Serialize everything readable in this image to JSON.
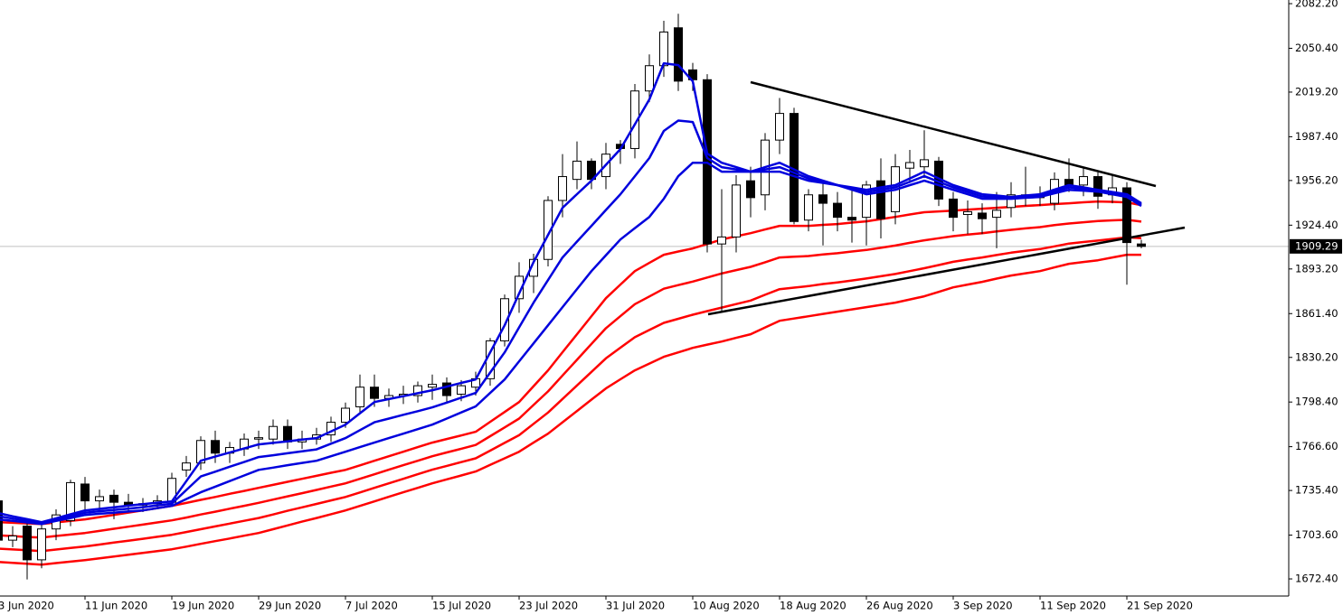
{
  "chart_data": {
    "type": "candlestick",
    "categories": [
      "3 Jun 2020",
      null,
      null,
      null,
      null,
      null,
      "11 Jun 2020",
      null,
      null,
      null,
      null,
      null,
      "19 Jun 2020",
      null,
      null,
      null,
      null,
      null,
      "29 Jun 2020",
      null,
      null,
      null,
      null,
      null,
      "7 Jul 2020",
      null,
      null,
      null,
      null,
      null,
      "15 Jul 2020",
      null,
      null,
      null,
      null,
      null,
      "23 Jul 2020",
      null,
      null,
      null,
      null,
      null,
      "31 Jul 2020",
      null,
      null,
      null,
      null,
      null,
      "10 Aug 2020",
      null,
      null,
      null,
      null,
      null,
      "18 Aug 2020",
      null,
      null,
      null,
      null,
      null,
      "26 Aug 2020",
      null,
      null,
      null,
      null,
      null,
      "3 Sep 2020",
      null,
      null,
      null,
      null,
      null,
      "11 Sep 2020",
      null,
      null,
      null,
      null,
      null,
      "21 Sep 2020",
      null
    ],
    "open": [
      1728,
      1700,
      1710,
      1686,
      1708,
      1714,
      1740,
      1728,
      1732,
      1727,
      1725,
      1726,
      1727,
      1750,
      1755,
      1771,
      1762,
      1765,
      1772,
      1772,
      1781,
      1770,
      1772,
      1775,
      1784,
      1795,
      1809,
      1801,
      1803,
      1803,
      1809,
      1812,
      1804,
      1809,
      1815,
      1842,
      1872,
      1888,
      1900,
      1942,
      1957,
      1970,
      1959,
      1982,
      1979,
      2020,
      2038,
      2065,
      2035,
      2028,
      1911,
      1916,
      1956,
      1946,
      1985,
      2004,
      1928,
      1946,
      1940,
      1930,
      1930,
      1956,
      1934,
      1965,
      1966,
      1970,
      1943,
      1932,
      1933,
      1930,
      1937,
      1945,
      1944,
      1940,
      1957,
      1953,
      1959,
      1946,
      1951,
      1911
    ],
    "high": [
      1731,
      1710,
      1712,
      1712,
      1722,
      1743,
      1745,
      1736,
      1736,
      1733,
      1730,
      1732,
      1748,
      1760,
      1774,
      1778,
      1770,
      1776,
      1778,
      1786,
      1786,
      1778,
      1780,
      1788,
      1798,
      1818,
      1818,
      1808,
      1810,
      1813,
      1818,
      1816,
      1814,
      1820,
      1844,
      1875,
      1898,
      1904,
      1945,
      1975,
      1984,
      1972,
      1983,
      1985,
      2025,
      2046,
      2070,
      2075,
      2040,
      2032,
      1950,
      1960,
      1966,
      1990,
      2015,
      2008,
      1950,
      1956,
      1948,
      1950,
      1956,
      1972,
      1975,
      1978,
      1992,
      1973,
      1948,
      1942,
      1940,
      1948,
      1955,
      1966,
      1952,
      1962,
      1972,
      1966,
      1962,
      1960,
      1955,
      1914
    ],
    "low": [
      1695,
      1695,
      1672,
      1680,
      1700,
      1710,
      1722,
      1720,
      1715,
      1720,
      1720,
      1722,
      1724,
      1745,
      1750,
      1755,
      1755,
      1760,
      1765,
      1768,
      1765,
      1765,
      1768,
      1770,
      1780,
      1790,
      1795,
      1795,
      1797,
      1798,
      1800,
      1798,
      1799,
      1803,
      1810,
      1838,
      1862,
      1876,
      1895,
      1930,
      1950,
      1950,
      1950,
      1968,
      1972,
      2012,
      2030,
      2020,
      2020,
      1905,
      1862,
      1905,
      1930,
      1935,
      1975,
      1925,
      1920,
      1910,
      1920,
      1912,
      1910,
      1915,
      1925,
      1955,
      1958,
      1938,
      1920,
      1918,
      1918,
      1908,
      1930,
      1938,
      1938,
      1935,
      1948,
      1945,
      1936,
      1940,
      1882,
      1908
    ],
    "close": [
      1700,
      1703,
      1686,
      1708,
      1718,
      1741,
      1728,
      1731,
      1727,
      1725,
      1726,
      1728,
      1744,
      1755,
      1771,
      1762,
      1766,
      1772,
      1773,
      1781,
      1770,
      1772,
      1775,
      1784,
      1794,
      1809,
      1801,
      1803,
      1804,
      1810,
      1811,
      1803,
      1810,
      1815,
      1842,
      1872,
      1888,
      1900,
      1942,
      1959,
      1970,
      1957,
      1975,
      1979,
      2020,
      2038,
      2062,
      2027,
      2028,
      1911,
      1916,
      1953,
      1944,
      1985,
      2004,
      1927,
      1946,
      1940,
      1930,
      1928,
      1953,
      1929,
      1966,
      1969,
      1971,
      1943,
      1930,
      1934,
      1929,
      1935,
      1946,
      1946,
      1946,
      1957,
      1953,
      1959,
      1945,
      1951,
      1912,
      1909.29
    ],
    "up_color": "#ffffff",
    "down_color": "#000000",
    "candle_outline": "#000000",
    "last_price": 1909.29,
    "series": [
      {
        "color": "#ff0000",
        "values": [
          1712.8,
          1712.4,
          1711.9,
          1711.5,
          1712.6,
          1713.7,
          1714.8,
          1716.4,
          1718.0,
          1719.6,
          1721.2,
          1722.8,
          1724.4,
          1726.5,
          1728.7,
          1730.8,
          1733.0,
          1735.1,
          1737.3,
          1739.4,
          1741.6,
          1743.7,
          1745.8,
          1748.0,
          1750.1,
          1753.3,
          1756.6,
          1759.8,
          1763.0,
          1766.3,
          1769.5,
          1772.1,
          1774.6,
          1777.2,
          1784.3,
          1791.3,
          1798.4,
          1809.7,
          1821.0,
          1833.9,
          1846.7,
          1859.6,
          1872.4,
          1882.1,
          1891.7,
          1897.5,
          1903.3,
          1905.6,
          1907.8,
          1911.0,
          1914.2,
          1916.5,
          1918.7,
          1921.3,
          1923.9,
          1923.9,
          1923.9,
          1924.6,
          1925.2,
          1926.2,
          1927.1,
          1928.7,
          1930.3,
          1932.0,
          1933.6,
          1934.2,
          1934.8,
          1935.5,
          1936.1,
          1936.8,
          1937.4,
          1938.1,
          1938.7,
          1939.4,
          1940.0,
          1940.7,
          1941.3,
          1941.0,
          1940.6,
          1938.7
        ]
      },
      {
        "color": "#ff0000",
        "values": [
          1703.4,
          1702.9,
          1702.3,
          1701.9,
          1703.0,
          1704.0,
          1705.1,
          1706.6,
          1708.1,
          1709.6,
          1711.1,
          1712.6,
          1714.1,
          1716.1,
          1718.3,
          1720.3,
          1722.4,
          1724.5,
          1726.6,
          1728.9,
          1731.2,
          1733.5,
          1735.8,
          1738.2,
          1740.5,
          1743.7,
          1746.9,
          1750.2,
          1753.4,
          1756.6,
          1759.8,
          1762.5,
          1765.1,
          1767.8,
          1774.1,
          1780.3,
          1786.6,
          1796.3,
          1806.0,
          1817.3,
          1828.5,
          1839.8,
          1851.0,
          1859.6,
          1868.1,
          1873.6,
          1879.1,
          1881.7,
          1884.2,
          1887.1,
          1890.0,
          1892.4,
          1894.7,
          1898.0,
          1901.4,
          1901.9,
          1902.4,
          1903.5,
          1904.4,
          1905.6,
          1906.7,
          1908.3,
          1909.9,
          1911.8,
          1913.6,
          1915.1,
          1916.6,
          1917.7,
          1918.7,
          1920.0,
          1921.1,
          1922.1,
          1923.0,
          1924.4,
          1925.6,
          1926.5,
          1927.3,
          1927.8,
          1928.2,
          1926.9
        ]
      },
      {
        "color": "#ff0000",
        "values": [
          1694.0,
          1693.4,
          1692.8,
          1692.2,
          1693.3,
          1694.4,
          1695.5,
          1696.9,
          1698.3,
          1699.6,
          1701.0,
          1702.4,
          1703.8,
          1705.8,
          1707.8,
          1709.8,
          1711.8,
          1713.8,
          1715.8,
          1718.3,
          1720.9,
          1723.4,
          1725.8,
          1728.3,
          1730.8,
          1734.0,
          1737.3,
          1740.5,
          1743.7,
          1747.0,
          1750.2,
          1752.9,
          1755.6,
          1758.3,
          1763.8,
          1769.3,
          1774.8,
          1782.9,
          1790.9,
          1800.6,
          1810.2,
          1819.9,
          1829.5,
          1837.1,
          1844.6,
          1849.7,
          1854.8,
          1857.7,
          1860.6,
          1863.2,
          1865.7,
          1868.2,
          1870.7,
          1874.8,
          1878.8,
          1879.9,
          1881.0,
          1882.5,
          1883.6,
          1885.0,
          1886.4,
          1888.0,
          1889.6,
          1891.7,
          1893.7,
          1896.0,
          1898.3,
          1899.9,
          1901.4,
          1903.1,
          1904.8,
          1906.1,
          1907.4,
          1909.3,
          1911.3,
          1912.4,
          1913.4,
          1914.6,
          1915.7,
          1915.1
        ]
      },
      {
        "color": "#ff0000",
        "values": [
          1684.5,
          1683.9,
          1683.2,
          1682.6,
          1683.7,
          1684.7,
          1685.8,
          1687.1,
          1688.4,
          1689.6,
          1690.9,
          1692.2,
          1693.5,
          1695.4,
          1697.4,
          1699.3,
          1701.2,
          1703.2,
          1705.1,
          1707.8,
          1710.5,
          1713.2,
          1715.8,
          1718.5,
          1721.2,
          1724.4,
          1727.6,
          1730.9,
          1734.1,
          1737.3,
          1740.5,
          1743.3,
          1746.1,
          1748.9,
          1753.6,
          1758.3,
          1763.0,
          1769.5,
          1775.9,
          1784.0,
          1792.0,
          1800.1,
          1808.1,
          1814.6,
          1821.0,
          1825.8,
          1830.6,
          1833.8,
          1837.0,
          1839.3,
          1841.5,
          1844.1,
          1846.7,
          1851.5,
          1856.3,
          1857.9,
          1859.5,
          1861.2,
          1862.8,
          1864.4,
          1866.0,
          1867.6,
          1869.2,
          1871.5,
          1873.7,
          1876.9,
          1880.1,
          1882.1,
          1884.0,
          1886.3,
          1888.5,
          1890.1,
          1891.7,
          1894.3,
          1896.9,
          1898.2,
          1899.4,
          1901.4,
          1903.3,
          1903.3
        ]
      },
      {
        "color": "#0000dd",
        "values": [
          1714.8,
          1713.7,
          1712.6,
          1711.5,
          1713.7,
          1715.8,
          1718.0,
          1718.8,
          1719.6,
          1720.4,
          1721.2,
          1722.8,
          1724.4,
          1729.3,
          1734.1,
          1738.1,
          1742.1,
          1746.1,
          1750.1,
          1751.7,
          1753.4,
          1755.0,
          1756.6,
          1759.8,
          1763.0,
          1766.3,
          1769.5,
          1772.7,
          1775.9,
          1779.1,
          1782.3,
          1786.6,
          1791.0,
          1795.3,
          1804.9,
          1814.5,
          1827.4,
          1840.2,
          1853.1,
          1866.0,
          1878.9,
          1891.7,
          1903.0,
          1914.2,
          1922.3,
          1930.3,
          1943.2,
          1959.3,
          1968.9,
          1968.9,
          1962.5,
          1962.5,
          1962.5,
          1962.5,
          1962.5,
          1959.3,
          1956.1,
          1954.5,
          1952.9,
          1949.7,
          1946.4,
          1948.0,
          1949.6,
          1952.9,
          1956.1,
          1952.9,
          1949.6,
          1946.4,
          1943.2,
          1943.2,
          1943.2,
          1943.9,
          1944.5,
          1947.1,
          1949.6,
          1949.0,
          1948.3,
          1946.4,
          1944.5,
          1938.1
        ]
      },
      {
        "color": "#0000dd",
        "values": [
          1717.1,
          1715.4,
          1713.8,
          1712.2,
          1714.7,
          1717.1,
          1719.6,
          1720.6,
          1721.5,
          1722.5,
          1723.5,
          1724.8,
          1726.0,
          1735.7,
          1745.4,
          1748.8,
          1752.3,
          1755.7,
          1759.2,
          1760.5,
          1761.9,
          1763.3,
          1764.7,
          1768.7,
          1772.7,
          1778.4,
          1784.0,
          1786.6,
          1789.3,
          1791.9,
          1794.6,
          1798.0,
          1801.5,
          1804.9,
          1819.4,
          1833.8,
          1851.6,
          1869.2,
          1885.3,
          1901.4,
          1912.7,
          1923.9,
          1935.2,
          1946.4,
          1959.3,
          1972.2,
          1991.5,
          1998.9,
          1997.9,
          1972.2,
          1965.7,
          1964.1,
          1962.5,
          1964.1,
          1965.7,
          1961.7,
          1957.7,
          1955.3,
          1952.9,
          1950.5,
          1948.0,
          1949.7,
          1951.3,
          1955.3,
          1959.3,
          1955.3,
          1951.3,
          1948.1,
          1944.8,
          1944.4,
          1943.9,
          1944.7,
          1945.5,
          1948.4,
          1951.3,
          1950.2,
          1949.0,
          1947.2,
          1945.5,
          1939.1
        ]
      },
      {
        "color": "#0000dd",
        "values": [
          1719.3,
          1717,
          1715,
          1712.8,
          1715.6,
          1718.4,
          1721.2,
          1722.3,
          1723.4,
          1724.6,
          1725.7,
          1726.7,
          1727.6,
          1742,
          1756.6,
          1759.5,
          1762.4,
          1765.3,
          1768.2,
          1769.3,
          1770.4,
          1771.6,
          1772.7,
          1777.5,
          1782.3,
          1790.4,
          1798.4,
          1800.5,
          1802.6,
          1804.7,
          1806.8,
          1809.4,
          1812,
          1814.5,
          1833.8,
          1853.1,
          1875.7,
          1898.2,
          1917.5,
          1936.8,
          1946.5,
          1956.1,
          1967.4,
          1978.6,
          1996.3,
          2014.0,
          2039.7,
          2038.4,
          2026.9,
          1975.4,
          1968.9,
          1965.7,
          1962.5,
          1965.7,
          1968.9,
          1964.1,
          1959.3,
          1956.1,
          1952.9,
          1951.3,
          1949.6,
          1951.3,
          1952.9,
          1957.7,
          1962.5,
          1957.7,
          1952.9,
          1949.7,
          1946.4,
          1945.5,
          1944.5,
          1945.5,
          1946.4,
          1949.7,
          1952.9,
          1951.3,
          1949.6,
          1948,
          1946.4,
          1940.0
        ]
      }
    ],
    "ylim": [
      1660.2,
      2084.8
    ],
    "yticks": [
      {
        "value": 1672.4,
        "label": "1672.40"
      },
      {
        "value": 1703.6,
        "label": "1703.60"
      },
      {
        "value": 1735.4,
        "label": "1735.40"
      },
      {
        "value": 1766.6,
        "label": "1766.60"
      },
      {
        "value": 1798.4,
        "label": "1798.40"
      },
      {
        "value": 1830.2,
        "label": "1830.20"
      },
      {
        "value": 1861.4,
        "label": "1861.40"
      },
      {
        "value": 1893.2,
        "label": "1893.20"
      },
      {
        "value": 1924.4,
        "label": "1924.40"
      },
      {
        "value": 1956.2,
        "label": "1956.20"
      },
      {
        "value": 1987.4,
        "label": "1987.40"
      },
      {
        "value": 2019.2,
        "label": "2019.20"
      },
      {
        "value": 2050.4,
        "label": "2050.40"
      },
      {
        "value": 2082.2,
        "label": "2082.20"
      }
    ],
    "grid": false
  }
}
